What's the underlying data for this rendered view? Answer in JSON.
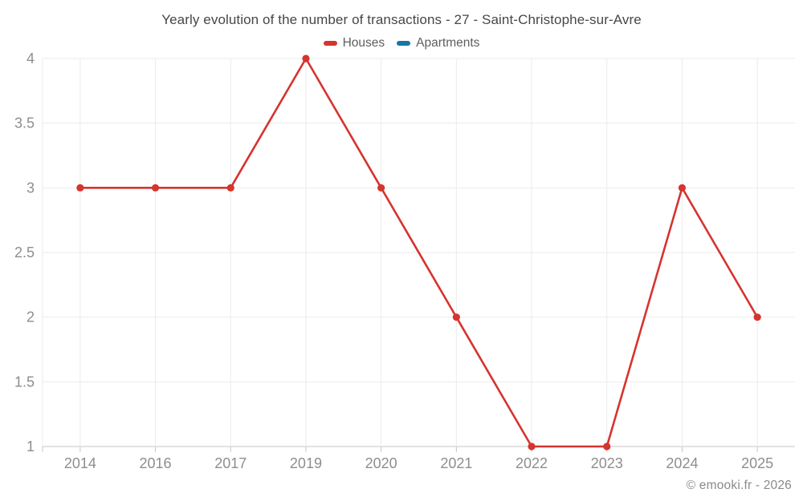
{
  "chart_data": {
    "type": "line",
    "title": "Yearly evolution of the number of transactions - 27 - Saint-Christophe-sur-Avre",
    "categories": [
      "2014",
      "2016",
      "2017",
      "2019",
      "2020",
      "2021",
      "2022",
      "2023",
      "2024",
      "2025"
    ],
    "series": [
      {
        "name": "Houses",
        "color": "#d5342f",
        "values": [
          3,
          3,
          3,
          4,
          3,
          2,
          1,
          1,
          3,
          2
        ]
      },
      {
        "name": "Apartments",
        "color": "#1576a8",
        "values": []
      }
    ],
    "xlabel": "",
    "ylabel": "",
    "ylim": [
      1,
      4
    ],
    "ytick_step": 0.5,
    "ytick_labels": [
      "1",
      "1.5",
      "2",
      "2.5",
      "3",
      "3.5",
      "4"
    ],
    "grid": true,
    "legend_position": "top"
  },
  "footer": {
    "credit": "© emooki.fr - 2026"
  },
  "colors": {
    "background": "#ffffff",
    "grid_line": "#ebebeb",
    "axis_line": "#c6c6c6",
    "tick_label": "#8e8e8e",
    "title_text": "#474747",
    "legend_text": "#5f5f5f",
    "footer_text": "#8a8a8a"
  }
}
